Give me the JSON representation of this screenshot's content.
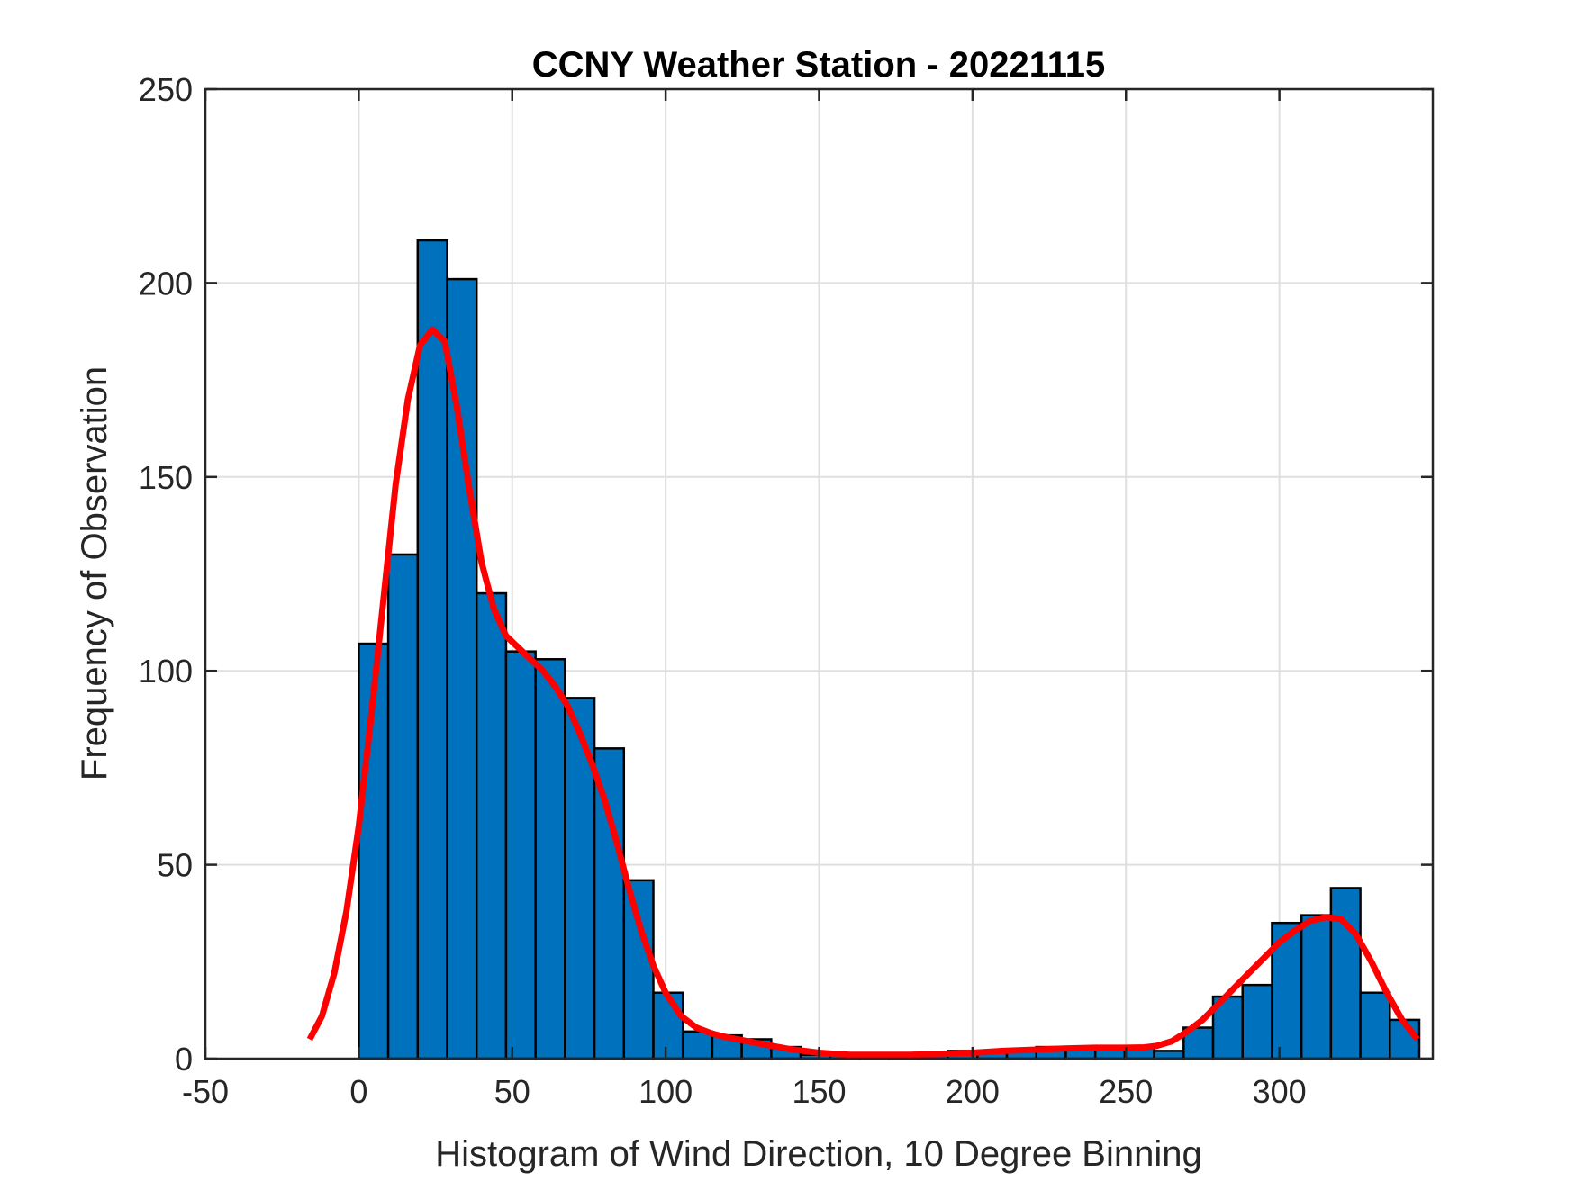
{
  "chart_data": {
    "type": "bar",
    "title": "CCNY Weather Station - 20221115",
    "xlabel": "Histogram of Wind Direction, 10 Degree Binning",
    "ylabel": "Frequency of Observation",
    "xlim": [
      -50,
      350
    ],
    "ylim": [
      0,
      250
    ],
    "xticks": [
      -50,
      0,
      50,
      100,
      150,
      200,
      250,
      300
    ],
    "yticks": [
      0,
      50,
      100,
      150,
      200,
      250
    ],
    "xtick_labels": [
      "-50",
      "0",
      "50",
      "100",
      "150",
      "200",
      "250",
      "300"
    ],
    "ytick_labels": [
      "0",
      "50",
      "100",
      "150",
      "200",
      "250"
    ],
    "grid": true,
    "bin_width": 9.6,
    "bin_edges": [
      0,
      9.6,
      19.2,
      28.8,
      38.4,
      48.0,
      57.6,
      67.2,
      76.8,
      86.4,
      96.0,
      105.6,
      115.2,
      124.8,
      134.4,
      144.0,
      153.6,
      163.2,
      172.8,
      182.4,
      192.0,
      201.6,
      211.2,
      220.8,
      230.4,
      240.0,
      249.6,
      259.2,
      268.8,
      278.4,
      288.0,
      297.6,
      307.2,
      316.8,
      326.4,
      336.0,
      345.6
    ],
    "values": [
      107,
      130,
      211,
      201,
      120,
      105,
      103,
      93,
      80,
      46,
      17,
      7,
      6,
      5,
      3,
      1,
      1,
      1,
      1,
      1,
      2,
      2,
      2,
      3,
      3,
      3,
      3,
      2,
      8,
      16,
      19,
      35,
      37,
      44,
      17,
      10
    ],
    "bar_color": "#0072BD",
    "edge_color": "#000000",
    "series": [
      {
        "type": "line",
        "color": "#FF0000",
        "x": [
          -16,
          -12,
          -8,
          -4,
          0,
          4,
          8,
          12,
          16,
          20,
          24,
          28,
          32,
          36,
          40,
          44,
          48,
          52,
          56,
          60,
          64,
          68,
          72,
          76,
          80,
          84,
          88,
          92,
          96,
          100,
          105,
          110,
          115,
          120,
          130,
          140,
          150,
          160,
          170,
          180,
          190,
          200,
          210,
          220,
          230,
          240,
          250,
          256,
          260,
          265,
          270,
          275,
          280,
          285,
          290,
          295,
          300,
          305,
          310,
          315,
          320,
          325,
          330,
          335,
          340,
          345
        ],
        "y": [
          5,
          11,
          22,
          38,
          60,
          88,
          118,
          148,
          170,
          184,
          188,
          185,
          168,
          147,
          128,
          116,
          109,
          106,
          103,
          100,
          96,
          91,
          84,
          76,
          67,
          56,
          44,
          33,
          24,
          17,
          11,
          8,
          6.5,
          5.5,
          4,
          2.5,
          1.5,
          1,
          1,
          1,
          1.2,
          1.5,
          2,
          2.3,
          2.6,
          2.8,
          2.8,
          2.9,
          3.3,
          4.5,
          7,
          10,
          14,
          18,
          22,
          26,
          30,
          33,
          35.5,
          36.5,
          36,
          32,
          25,
          17,
          10,
          5
        ]
      }
    ]
  }
}
